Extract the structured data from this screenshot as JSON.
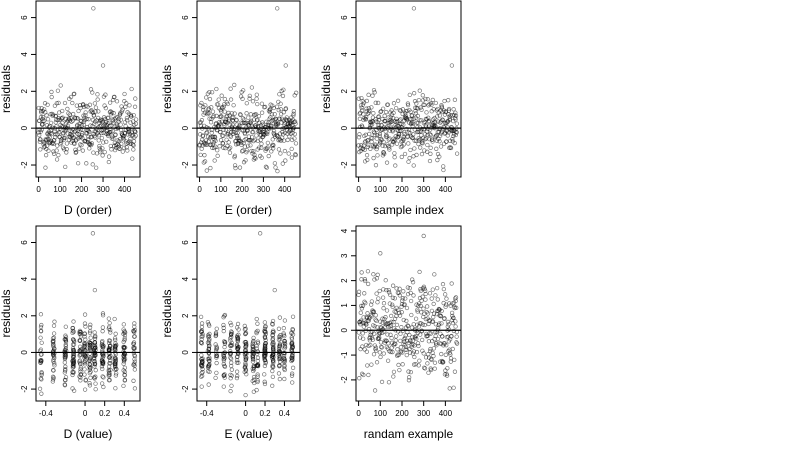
{
  "chart_data": [
    {
      "type": "scatter",
      "xlabel": "D (order)",
      "ylabel": "residuals",
      "xticks": [
        0,
        100,
        200,
        300,
        400
      ],
      "xlim": [
        -12,
        472
      ],
      "yticks": [
        -2,
        0,
        2,
        4,
        6
      ],
      "ylim": [
        -2.65,
        6.9
      ],
      "hline": 0,
      "n_points": 455,
      "x_kind": "index",
      "point_color": "#000000",
      "outliers": [
        {
          "x": 255,
          "y": 6.5
        },
        {
          "x": 300,
          "y": 3.4
        }
      ],
      "noise": {
        "sd": 0.85,
        "seed": 11
      }
    },
    {
      "type": "scatter",
      "xlabel": "E (order)",
      "ylabel": "residuals",
      "xticks": [
        0,
        100,
        200,
        300,
        400
      ],
      "xlim": [
        -12,
        472
      ],
      "yticks": [
        -2,
        0,
        2,
        4,
        6
      ],
      "ylim": [
        -2.65,
        6.9
      ],
      "hline": 0,
      "n_points": 455,
      "x_kind": "index",
      "point_color": "#000000",
      "outliers": [
        {
          "x": 365,
          "y": 6.5
        },
        {
          "x": 405,
          "y": 3.4
        }
      ],
      "noise": {
        "sd": 0.85,
        "seed": 23
      }
    },
    {
      "type": "scatter",
      "xlabel": "sample index",
      "ylabel": "residuals",
      "xticks": [
        0,
        100,
        200,
        300,
        400
      ],
      "xlim": [
        -12,
        472
      ],
      "yticks": [
        -2,
        0,
        2,
        4,
        6
      ],
      "ylim": [
        -2.65,
        6.9
      ],
      "hline": 0,
      "n_points": 455,
      "x_kind": "index",
      "point_color": "#000000",
      "outliers": [
        {
          "x": 255,
          "y": 6.5
        },
        {
          "x": 430,
          "y": 3.4
        }
      ],
      "noise": {
        "sd": 0.85,
        "seed": 37
      }
    },
    {
      "type": "scatter",
      "xlabel": "D (value)",
      "ylabel": "residuals",
      "xticks": [
        -0.4,
        0.0,
        0.2,
        0.4
      ],
      "xlim": [
        -0.5,
        0.56
      ],
      "yticks": [
        -2,
        0,
        2,
        4,
        6
      ],
      "ylim": [
        -2.65,
        6.9
      ],
      "hline": 0,
      "n_points": 455,
      "x_kind": "clusters",
      "x_clusters": [
        -0.45,
        -0.32,
        -0.2,
        -0.12,
        -0.05,
        0.0,
        0.05,
        0.1,
        0.18,
        0.25,
        0.31,
        0.4,
        0.5
      ],
      "point_color": "#000000",
      "outliers": [
        {
          "x": 0.08,
          "y": 6.5
        },
        {
          "x": 0.1,
          "y": 3.4
        }
      ],
      "noise": {
        "sd": 0.85,
        "seed": 53
      }
    },
    {
      "type": "scatter",
      "xlabel": "E (value)",
      "ylabel": "residuals",
      "xticks": [
        -0.4,
        0.0,
        0.2,
        0.4
      ],
      "xlim": [
        -0.5,
        0.56
      ],
      "yticks": [
        -2,
        0,
        2,
        4,
        6
      ],
      "ylim": [
        -2.65,
        6.9
      ],
      "hline": 0,
      "n_points": 455,
      "x_kind": "clusters",
      "x_clusters": [
        -0.45,
        -0.38,
        -0.3,
        -0.22,
        -0.15,
        -0.08,
        0.0,
        0.08,
        0.12,
        0.2,
        0.28,
        0.35,
        0.4,
        0.48
      ],
      "point_color": "#000000",
      "outliers": [
        {
          "x": 0.15,
          "y": 6.5
        },
        {
          "x": 0.3,
          "y": 3.4
        }
      ],
      "noise": {
        "sd": 0.85,
        "seed": 71
      }
    },
    {
      "type": "scatter",
      "xlabel": "randam example",
      "ylabel": "residuals",
      "xticks": [
        0,
        100,
        200,
        300,
        400
      ],
      "xlim": [
        -12,
        472
      ],
      "yticks": [
        -2,
        -1,
        0,
        1,
        2,
        3,
        4
      ],
      "ylim": [
        -2.85,
        4.2
      ],
      "hline": 0,
      "n_points": 455,
      "x_kind": "index",
      "point_color": "#000000",
      "outliers": [
        {
          "x": 300,
          "y": 3.8
        },
        {
          "x": 100,
          "y": 3.1
        }
      ],
      "noise": {
        "sd": 1.0,
        "seed": 97
      }
    }
  ]
}
